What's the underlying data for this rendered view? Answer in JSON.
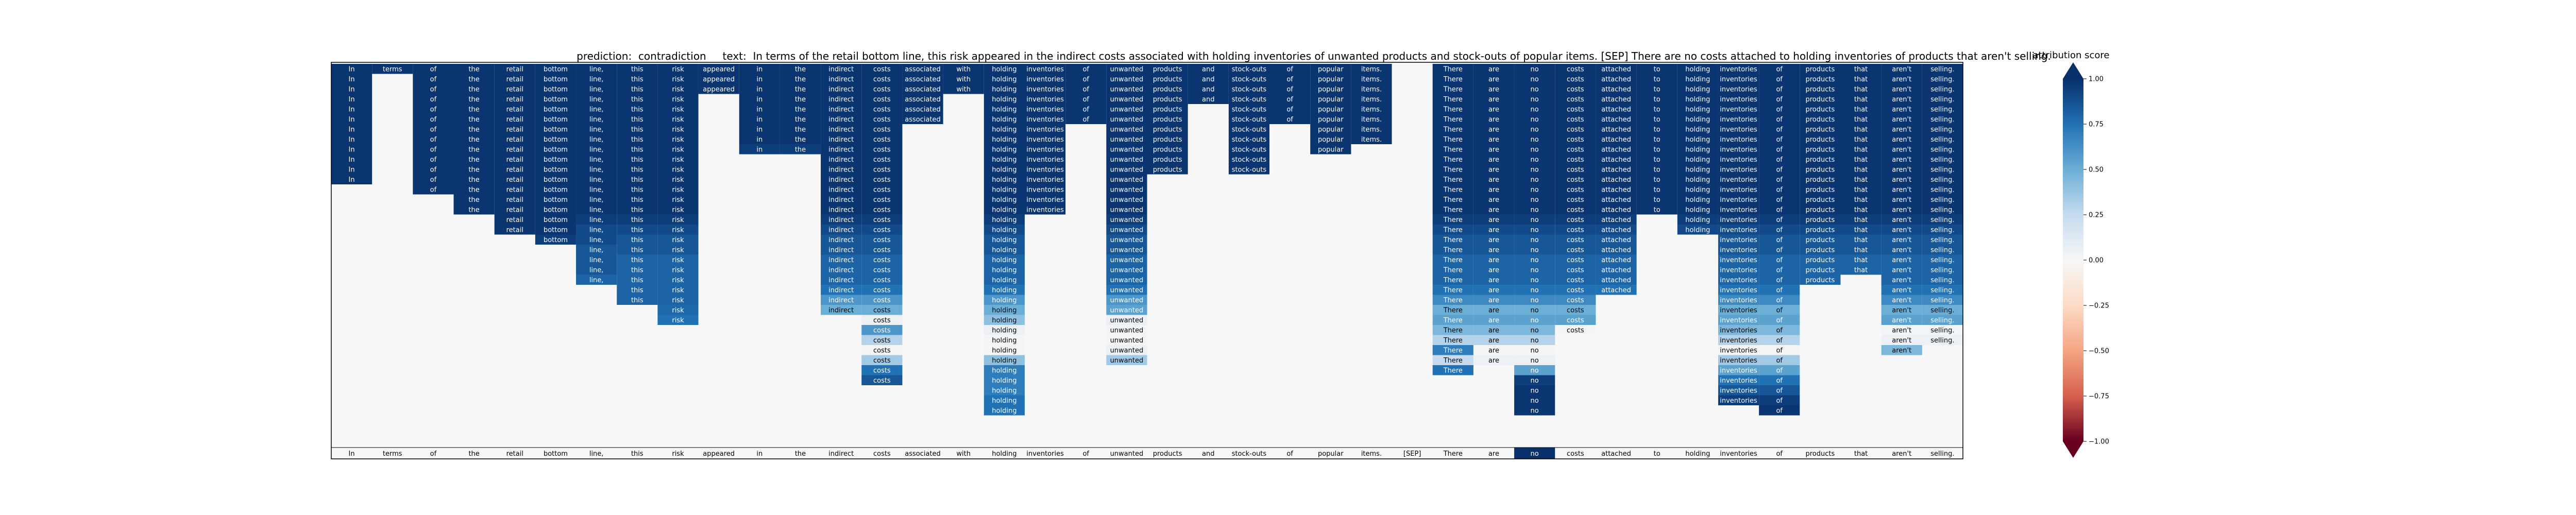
{
  "header": {
    "prediction_label": "prediction:",
    "prediction": "contradiction",
    "text_label": "text:",
    "text": "In terms of the retail bottom line, this risk appeared in the indirect costs associated with holding inventories of unwanted products and stock-outs of popular items. [SEP] There are no costs attached to holding inventories of products that aren't selling."
  },
  "colorbar": {
    "title": "attribution score",
    "ticks": [
      "1.00",
      "0.75",
      "0.50",
      "0.25",
      "0.00",
      "−0.25",
      "−0.50",
      "−0.75",
      "−1.00"
    ],
    "colors": [
      "#08306b",
      "#2171b5",
      "#6baed6",
      "#c6dbef",
      "#f7f7f7",
      "#fddbc7",
      "#f4a582",
      "#d6604d",
      "#67001f"
    ]
  },
  "chart_data": {
    "type": "heatmap",
    "title": "prediction: contradiction    text: In terms of the retail bottom line, this risk appeared in the indirect costs associated with holding inventories of unwanted products and stock-outs of popular items. [SEP] There are no costs attached to holding inventories of products that aren't selling.",
    "value_range": [
      -1,
      1
    ],
    "tokens": [
      "In",
      "terms",
      "of",
      "the",
      "retail",
      "bottom",
      "line,",
      "this",
      "risk",
      "appeared",
      "in",
      "the",
      "indirect",
      "costs",
      "associated",
      "with",
      "holding",
      "inventories",
      "of",
      "unwanted",
      "products",
      "and",
      "stock-outs",
      "of",
      "popular",
      "items.",
      "[SEP]",
      "There",
      "are",
      "no",
      "costs",
      "attached",
      "to",
      "holding",
      "inventories",
      "of",
      "products",
      "that",
      "aren't",
      "selling."
    ],
    "column_rows": [
      12,
      1,
      13,
      15,
      17,
      18,
      22,
      24,
      26,
      3,
      9,
      9,
      25,
      32,
      6,
      3,
      35,
      15,
      6,
      30,
      11,
      4,
      11,
      6,
      9,
      8,
      0,
      31,
      30,
      35,
      27,
      23,
      15,
      17,
      34,
      35,
      22,
      21,
      29,
      28
    ],
    "column_values": [
      [
        0.98,
        0.98,
        0.98,
        0.98,
        0.98,
        0.98,
        0.98,
        0.98,
        0.98,
        0.98,
        0.98,
        0.98
      ],
      [
        0.98
      ],
      [
        0.98,
        0.98,
        0.98,
        0.98,
        0.98,
        0.98,
        0.98,
        0.98,
        0.98,
        0.98,
        0.98,
        0.98,
        0.98
      ],
      [
        0.98,
        0.98,
        0.98,
        0.98,
        0.98,
        0.98,
        0.98,
        0.98,
        0.98,
        0.98,
        0.98,
        0.98,
        0.98,
        0.98,
        0.98
      ],
      [
        0.98,
        0.98,
        0.98,
        0.98,
        0.98,
        0.98,
        0.98,
        0.98,
        0.98,
        0.98,
        0.98,
        0.98,
        0.98,
        0.98,
        0.98,
        0.98,
        0.98
      ],
      [
        0.98,
        0.98,
        0.98,
        0.98,
        0.98,
        0.98,
        0.98,
        0.98,
        0.98,
        0.98,
        0.98,
        0.98,
        0.98,
        0.98,
        0.98,
        0.98,
        0.98,
        0.95
      ],
      [
        0.98,
        0.98,
        0.98,
        0.98,
        0.98,
        0.98,
        0.98,
        0.98,
        0.98,
        0.98,
        0.98,
        0.98,
        0.98,
        0.98,
        0.98,
        0.95,
        0.9,
        0.9,
        0.85,
        0.85,
        0.85,
        0.8
      ],
      [
        0.98,
        0.98,
        0.98,
        0.98,
        0.98,
        0.98,
        0.98,
        0.98,
        0.98,
        0.98,
        0.98,
        0.98,
        0.98,
        0.98,
        0.98,
        0.95,
        0.9,
        0.85,
        0.85,
        0.8,
        0.8,
        0.8,
        0.8,
        0.8
      ],
      [
        0.98,
        0.98,
        0.98,
        0.98,
        0.98,
        0.98,
        0.98,
        0.98,
        0.98,
        0.98,
        0.98,
        0.98,
        0.98,
        0.98,
        0.98,
        0.95,
        0.9,
        0.85,
        0.85,
        0.8,
        0.8,
        0.8,
        0.8,
        0.8,
        0.78,
        0.75
      ],
      [
        0.98,
        0.98,
        0.98
      ],
      [
        0.98,
        0.98,
        0.98,
        0.98,
        0.98,
        0.98,
        0.98,
        0.98,
        0.95
      ],
      [
        0.98,
        0.98,
        0.98,
        0.98,
        0.98,
        0.98,
        0.98,
        0.98,
        0.95
      ],
      [
        0.98,
        0.98,
        0.98,
        0.98,
        0.98,
        0.98,
        0.98,
        0.98,
        0.98,
        0.98,
        0.98,
        0.98,
        0.98,
        0.98,
        0.98,
        0.95,
        0.9,
        0.85,
        0.85,
        0.8,
        0.8,
        0.8,
        0.75,
        0.6,
        0.5
      ],
      [
        0.98,
        0.98,
        0.98,
        0.98,
        0.98,
        0.98,
        0.98,
        0.98,
        0.98,
        0.98,
        0.98,
        0.98,
        0.98,
        0.98,
        0.98,
        0.95,
        0.9,
        0.85,
        0.85,
        0.8,
        0.8,
        0.8,
        0.75,
        0.6,
        0.5,
        0.05,
        0.6,
        0.3,
        0.02,
        0.35,
        0.75,
        0.85
      ],
      [
        0.98,
        0.98,
        0.98,
        0.98,
        0.98,
        0.98
      ],
      [
        0.98,
        0.98,
        0.98
      ],
      [
        0.98,
        0.98,
        0.98,
        0.98,
        0.98,
        0.98,
        0.98,
        0.98,
        0.98,
        0.98,
        0.98,
        0.98,
        0.98,
        0.98,
        0.98,
        0.95,
        0.9,
        0.85,
        0.85,
        0.8,
        0.8,
        0.8,
        0.75,
        0.6,
        0.5,
        0.4,
        0.05,
        0.02,
        0.02,
        0.4,
        0.7,
        0.7,
        0.7,
        0.75,
        0.75
      ],
      [
        0.98,
        0.98,
        0.98,
        0.98,
        0.98,
        0.98,
        0.98,
        0.98,
        0.98,
        0.98,
        0.98,
        0.98,
        0.98,
        0.98,
        0.98
      ],
      [
        0.98,
        0.98,
        0.98,
        0.98,
        0.98,
        0.98
      ],
      [
        0.98,
        0.98,
        0.98,
        0.98,
        0.98,
        0.98,
        0.98,
        0.98,
        0.98,
        0.98,
        0.98,
        0.98,
        0.98,
        0.98,
        0.98,
        0.95,
        0.9,
        0.85,
        0.85,
        0.8,
        0.8,
        0.8,
        0.75,
        0.6,
        0.55,
        0.05,
        0.02,
        0.02,
        0.05,
        0.35
      ],
      [
        0.98,
        0.98,
        0.98,
        0.98,
        0.98,
        0.98,
        0.98,
        0.98,
        0.98,
        0.98,
        0.98
      ],
      [
        0.98,
        0.98,
        0.98,
        0.98
      ],
      [
        0.98,
        0.98,
        0.98,
        0.98,
        0.98,
        0.98,
        0.98,
        0.98,
        0.98,
        0.98,
        0.98
      ],
      [
        0.98,
        0.98,
        0.98,
        0.98,
        0.98,
        0.98
      ],
      [
        0.98,
        0.98,
        0.98,
        0.98,
        0.98,
        0.98,
        0.98,
        0.98,
        0.98
      ],
      [
        0.98,
        0.98,
        0.98,
        0.98,
        0.98,
        0.98,
        0.98,
        0.98
      ],
      [],
      [
        0.98,
        0.98,
        0.98,
        0.98,
        0.98,
        0.98,
        0.98,
        0.98,
        0.98,
        0.98,
        0.98,
        0.98,
        0.98,
        0.98,
        0.98,
        0.95,
        0.9,
        0.85,
        0.85,
        0.8,
        0.8,
        0.8,
        0.75,
        0.65,
        0.5,
        0.55,
        0.45,
        0.3,
        0.7,
        0.25,
        0.75
      ],
      [
        0.98,
        0.98,
        0.98,
        0.98,
        0.98,
        0.98,
        0.98,
        0.98,
        0.98,
        0.98,
        0.98,
        0.98,
        0.98,
        0.98,
        0.98,
        0.95,
        0.9,
        0.85,
        0.85,
        0.8,
        0.8,
        0.8,
        0.75,
        0.65,
        0.5,
        0.55,
        0.45,
        0.3,
        0.02,
        0.05
      ],
      [
        0.98,
        0.98,
        0.98,
        0.98,
        0.98,
        0.98,
        0.98,
        0.98,
        0.98,
        0.98,
        0.98,
        0.98,
        0.98,
        0.98,
        0.98,
        0.95,
        0.9,
        0.85,
        0.85,
        0.8,
        0.8,
        0.8,
        0.75,
        0.65,
        0.5,
        0.55,
        0.45,
        0.3,
        0.02,
        0.05,
        0.55,
        0.95,
        0.98,
        0.98,
        0.98
      ],
      [
        0.98,
        0.98,
        0.98,
        0.98,
        0.98,
        0.98,
        0.98,
        0.98,
        0.98,
        0.98,
        0.98,
        0.98,
        0.98,
        0.98,
        0.98,
        0.95,
        0.9,
        0.85,
        0.85,
        0.8,
        0.8,
        0.8,
        0.75,
        0.65,
        0.5,
        0.55,
        0.02
      ],
      [
        0.98,
        0.98,
        0.98,
        0.98,
        0.98,
        0.98,
        0.98,
        0.98,
        0.98,
        0.98,
        0.98,
        0.98,
        0.98,
        0.98,
        0.98,
        0.95,
        0.9,
        0.85,
        0.85,
        0.8,
        0.8,
        0.8,
        0.75
      ],
      [
        0.98,
        0.98,
        0.98,
        0.98,
        0.98,
        0.98,
        0.98,
        0.98,
        0.98,
        0.98,
        0.98,
        0.98,
        0.98,
        0.98,
        0.98
      ],
      [
        0.98,
        0.98,
        0.98,
        0.98,
        0.98,
        0.98,
        0.98,
        0.98,
        0.98,
        0.98,
        0.98,
        0.98,
        0.98,
        0.98,
        0.98,
        0.95,
        0.9
      ],
      [
        0.98,
        0.98,
        0.98,
        0.98,
        0.98,
        0.98,
        0.98,
        0.98,
        0.98,
        0.98,
        0.98,
        0.98,
        0.98,
        0.98,
        0.98,
        0.95,
        0.9,
        0.85,
        0.85,
        0.8,
        0.8,
        0.8,
        0.75,
        0.65,
        0.5,
        0.55,
        0.45,
        0.3,
        0.02,
        0.35,
        0.55,
        0.75,
        0.85,
        0.95
      ],
      [
        0.98,
        0.98,
        0.98,
        0.98,
        0.98,
        0.98,
        0.98,
        0.98,
        0.98,
        0.98,
        0.98,
        0.98,
        0.98,
        0.98,
        0.98,
        0.95,
        0.9,
        0.85,
        0.85,
        0.8,
        0.8,
        0.8,
        0.75,
        0.65,
        0.5,
        0.55,
        0.45,
        0.3,
        0.02,
        0.35,
        0.55,
        0.75,
        0.85,
        0.95,
        0.98
      ],
      [
        0.98,
        0.98,
        0.98,
        0.98,
        0.98,
        0.98,
        0.98,
        0.98,
        0.98,
        0.98,
        0.98,
        0.98,
        0.98,
        0.98,
        0.98,
        0.95,
        0.9,
        0.85,
        0.85,
        0.8,
        0.8,
        0.8
      ],
      [
        0.98,
        0.98,
        0.98,
        0.98,
        0.98,
        0.98,
        0.98,
        0.98,
        0.98,
        0.98,
        0.98,
        0.98,
        0.98,
        0.98,
        0.98,
        0.95,
        0.9,
        0.85,
        0.85,
        0.8,
        0.8
      ],
      [
        0.98,
        0.98,
        0.98,
        0.98,
        0.98,
        0.98,
        0.98,
        0.98,
        0.98,
        0.98,
        0.98,
        0.98,
        0.98,
        0.98,
        0.98,
        0.95,
        0.9,
        0.85,
        0.85,
        0.8,
        0.8,
        0.8,
        0.75,
        0.65,
        0.5,
        0.55,
        0.02,
        0.05,
        0.45
      ],
      [
        0.98,
        0.98,
        0.98,
        0.98,
        0.98,
        0.98,
        0.98,
        0.98,
        0.98,
        0.98,
        0.98,
        0.98,
        0.98,
        0.98,
        0.98,
        0.95,
        0.9,
        0.85,
        0.85,
        0.8,
        0.8,
        0.8,
        0.75,
        0.65,
        0.5,
        0.55,
        0.02,
        0.05
      ]
    ]
  }
}
